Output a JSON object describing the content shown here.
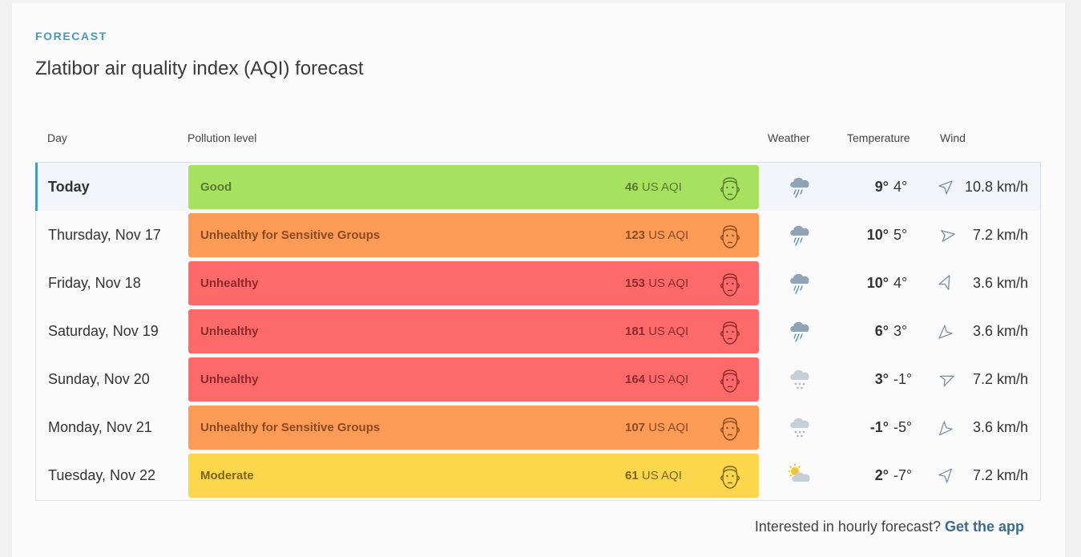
{
  "header": {
    "eyebrow": "FORECAST",
    "title": "Zlatibor air quality index (AQI) forecast"
  },
  "columns": {
    "day": "Day",
    "pollution": "Pollution level",
    "weather": "Weather",
    "temperature": "Temperature",
    "wind": "Wind"
  },
  "rows": [
    {
      "day": "Today",
      "level": "Good",
      "aqi_value": "46",
      "aqi_unit": "US AQI",
      "bar_color": "#a8e05f",
      "text_color": "#5a7a2f",
      "weather_icon": "rain-cloud-icon",
      "temp_high": "9°",
      "temp_low": "4°",
      "wind_dir_icon": "wind-direction-icon",
      "wind": "10.8 km/h"
    },
    {
      "day": "Thursday, Nov 17",
      "level": "Unhealthy for Sensitive Groups",
      "aqi_value": "123",
      "aqi_unit": "US AQI",
      "bar_color": "#fe9b57",
      "text_color": "#8c4a1f",
      "weather_icon": "rain-cloud-icon",
      "temp_high": "10°",
      "temp_low": "5°",
      "wind_dir_icon": "wind-direction-icon",
      "wind": "7.2 km/h"
    },
    {
      "day": "Friday, Nov 18",
      "level": "Unhealthy",
      "aqi_value": "153",
      "aqi_unit": "US AQI",
      "bar_color": "#fe6a69",
      "text_color": "#8d2a2e",
      "weather_icon": "rain-cloud-icon",
      "temp_high": "10°",
      "temp_low": "4°",
      "wind_dir_icon": "wind-direction-icon",
      "wind": "3.6 km/h"
    },
    {
      "day": "Saturday, Nov 19",
      "level": "Unhealthy",
      "aqi_value": "181",
      "aqi_unit": "US AQI",
      "bar_color": "#fe6a69",
      "text_color": "#8d2a2e",
      "weather_icon": "rain-cloud-icon",
      "temp_high": "6°",
      "temp_low": "3°",
      "wind_dir_icon": "wind-direction-icon",
      "wind": "3.6 km/h"
    },
    {
      "day": "Sunday, Nov 20",
      "level": "Unhealthy",
      "aqi_value": "164",
      "aqi_unit": "US AQI",
      "bar_color": "#fe6a69",
      "text_color": "#8d2a2e",
      "weather_icon": "snow-cloud-icon",
      "temp_high": "3°",
      "temp_low": "-1°",
      "wind_dir_icon": "wind-direction-icon",
      "wind": "7.2 km/h"
    },
    {
      "day": "Monday, Nov 21",
      "level": "Unhealthy for Sensitive Groups",
      "aqi_value": "107",
      "aqi_unit": "US AQI",
      "bar_color": "#fe9b57",
      "text_color": "#8c4a1f",
      "weather_icon": "snow-cloud-icon",
      "temp_high": "-1°",
      "temp_low": "-5°",
      "wind_dir_icon": "wind-direction-icon",
      "wind": "3.6 km/h"
    },
    {
      "day": "Tuesday, Nov 22",
      "level": "Moderate",
      "aqi_value": "61",
      "aqi_unit": "US AQI",
      "bar_color": "#fdd74b",
      "text_color": "#7a6418",
      "weather_icon": "partly-sunny-icon",
      "temp_high": "2°",
      "temp_low": "-7°",
      "wind_dir_icon": "wind-direction-icon",
      "wind": "7.2 km/h"
    }
  ],
  "footer": {
    "question": "Interested in hourly forecast?",
    "link": "Get the app"
  }
}
